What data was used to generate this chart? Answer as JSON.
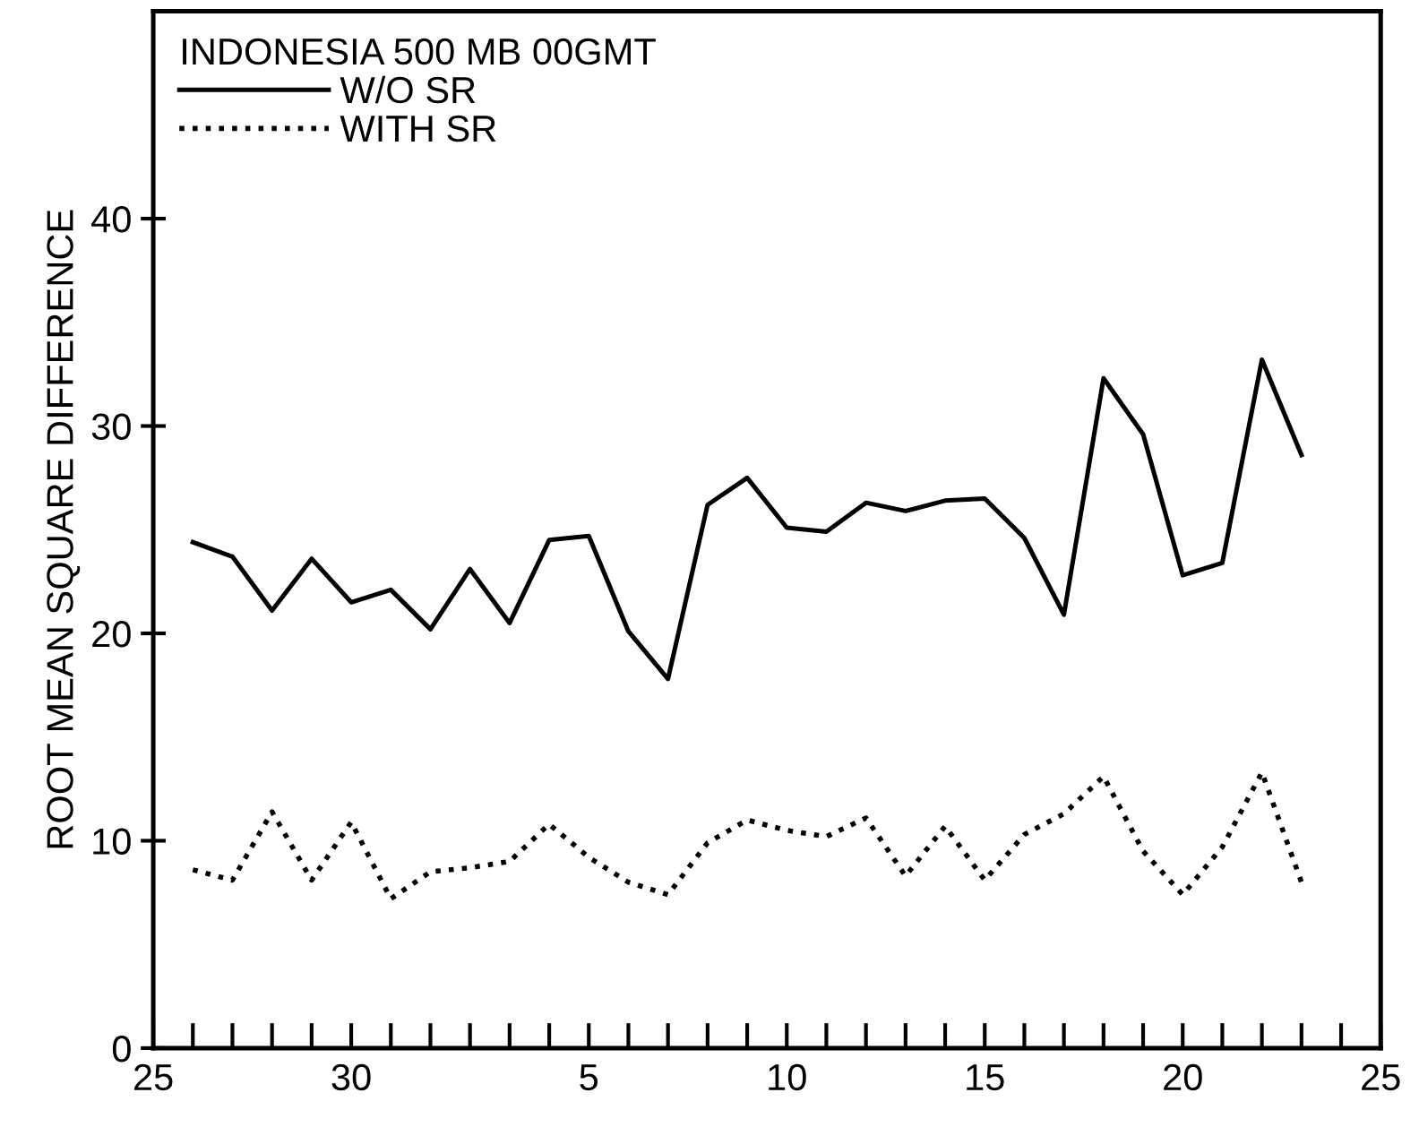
{
  "chart_data": {
    "type": "line",
    "ylabel": "ROOT MEAN SQUARE DIFFERENCE",
    "legend_title": "INDONESIA 500 MB 00GMT",
    "categories": [
      "25",
      null,
      null,
      null,
      null,
      "30",
      null,
      null,
      null,
      null,
      null,
      "5",
      null,
      null,
      null,
      null,
      "10",
      null,
      null,
      null,
      null,
      "15",
      null,
      null,
      null,
      null,
      "20",
      null,
      null,
      null,
      null,
      "25"
    ],
    "series": [
      {
        "name": "W/O SR",
        "color": "#000000",
        "line_style": "solid",
        "values": [
          null,
          24.4,
          23.7,
          21.1,
          23.6,
          21.5,
          22.1,
          20.2,
          23.1,
          20.5,
          24.5,
          24.7,
          20.1,
          17.8,
          26.2,
          27.5,
          25.1,
          24.9,
          26.3,
          25.9,
          26.4,
          26.5,
          24.6,
          20.9,
          32.3,
          29.6,
          22.8,
          23.4,
          33.2,
          28.6,
          null,
          null
        ]
      },
      {
        "name": "WITH SR",
        "color": "#000000",
        "line_style": "dotted",
        "values": [
          null,
          8.6,
          8.1,
          11.4,
          8.1,
          10.9,
          7.2,
          8.5,
          8.7,
          9.0,
          10.8,
          9.2,
          8.0,
          7.4,
          9.9,
          11.0,
          10.5,
          10.2,
          11.1,
          8.3,
          10.7,
          8.1,
          10.3,
          11.3,
          13.1,
          9.5,
          7.4,
          9.7,
          13.3,
          8.0,
          null,
          null
        ]
      }
    ],
    "ylim": [
      0,
      50
    ],
    "yticks": [
      0,
      10,
      20,
      30,
      40
    ],
    "grid": false,
    "legend": "top left",
    "marker": "none"
  }
}
